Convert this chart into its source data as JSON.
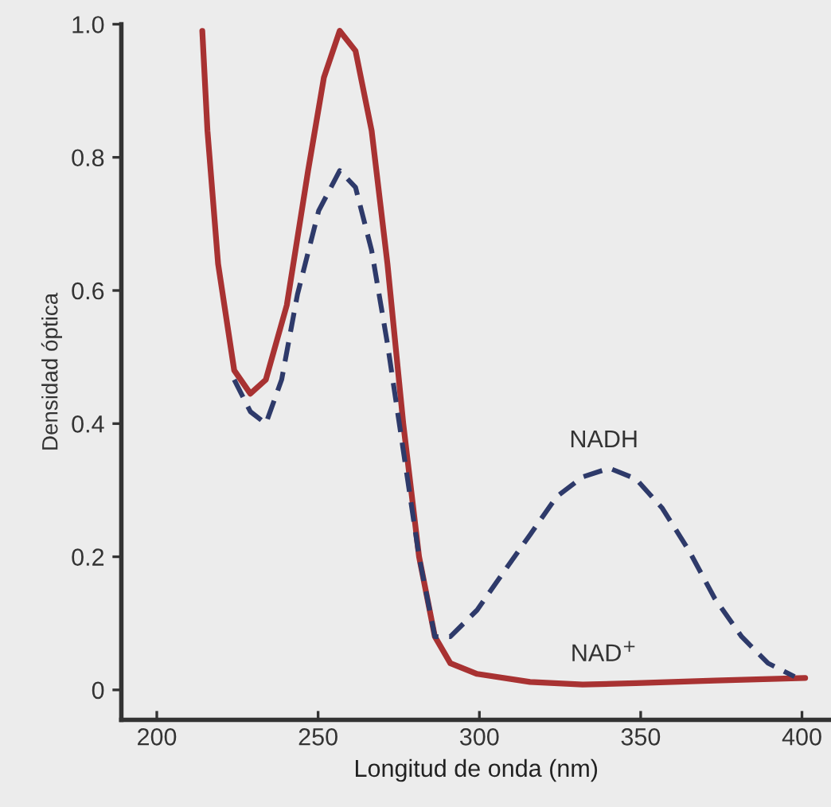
{
  "chart_data": {
    "type": "line",
    "xlabel": "Longitud de onda (nm)",
    "ylabel": "Densidad óptica",
    "xlim": [
      189,
      409
    ],
    "ylim": [
      -0.045,
      1.0
    ],
    "xticks": [
      200,
      250,
      300,
      350,
      400
    ],
    "yticks": [
      0,
      0.2,
      0.4,
      0.6,
      0.8,
      {
        "value": 1.0,
        "label": "1.0"
      }
    ],
    "grid": false,
    "series": [
      {
        "name": "NAD$^{+}$",
        "color": "#a83232",
        "line_style": "solid",
        "x": [
          214.1,
          215.7,
          219,
          224,
          229,
          233.8,
          240.3,
          246.9,
          251.8,
          256.7,
          261.6,
          266.6,
          271.5,
          276.4,
          281.3,
          286.2,
          291,
          299.3,
          315.7,
          332,
          348.5,
          373,
          401
        ],
        "values": [
          0.99,
          0.84,
          0.64,
          0.48,
          0.445,
          0.466,
          0.578,
          0.78,
          0.92,
          0.99,
          0.96,
          0.84,
          0.64,
          0.4,
          0.2,
          0.08,
          0.04,
          0.024,
          0.012,
          0.008,
          0.01,
          0.014,
          0.018
        ]
      },
      {
        "name": "NADH",
        "color": "#2e3a6a",
        "line_style": "dashed",
        "x": [
          224,
          229,
          233.8,
          238.7,
          243.6,
          250.2,
          256.7,
          261.6,
          266.6,
          271.5,
          276.4,
          281.3,
          286.2,
          291,
          299.3,
          307.5,
          315.7,
          323.9,
          332,
          340.3,
          348.5,
          356.7,
          365,
          373,
          381.3,
          389.5,
          397.7
        ],
        "values": [
          0.466,
          0.418,
          0.4,
          0.466,
          0.594,
          0.72,
          0.78,
          0.755,
          0.66,
          0.52,
          0.36,
          0.2,
          0.08,
          0.08,
          0.12,
          0.177,
          0.233,
          0.29,
          0.32,
          0.333,
          0.317,
          0.273,
          0.209,
          0.137,
          0.08,
          0.04,
          0.02
        ]
      }
    ]
  }
}
